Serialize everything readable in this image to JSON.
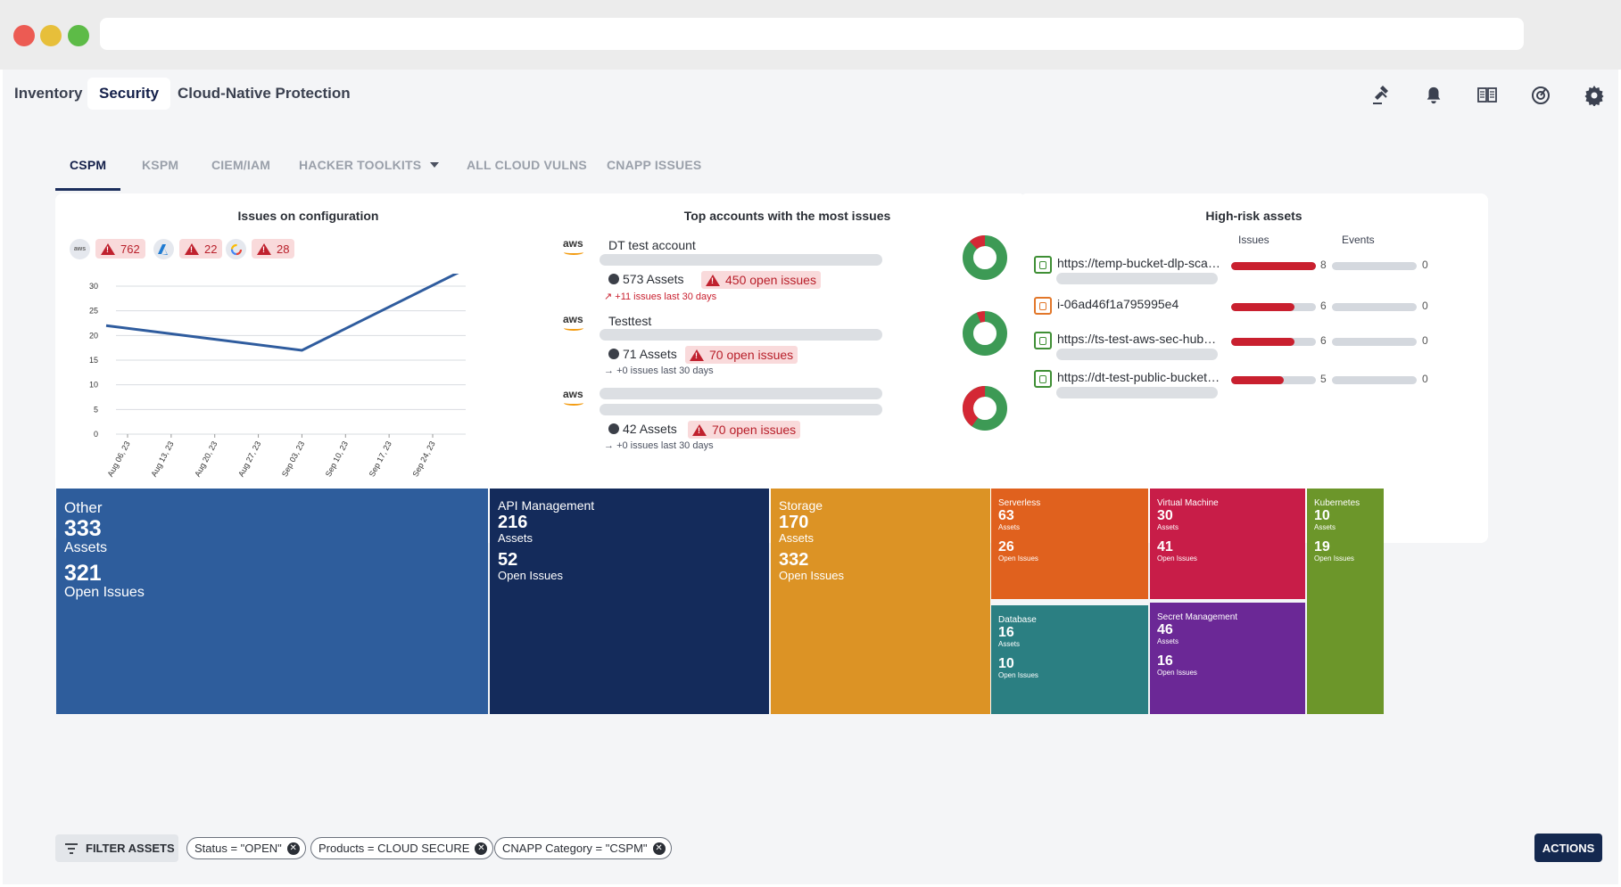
{
  "nav": {
    "tabs": [
      {
        "label": "Inventory"
      },
      {
        "label": "Security"
      },
      {
        "label": "Cloud-Native Protection"
      }
    ],
    "icons": [
      "gavel-icon",
      "bell-icon",
      "book-icon",
      "radar-icon",
      "gear-icon"
    ]
  },
  "subnav": {
    "tabs": [
      {
        "label": "CSPM"
      },
      {
        "label": "KSPM"
      },
      {
        "label": "CIEM/IAM"
      },
      {
        "label": "HACKER TOOLKITS"
      },
      {
        "label": "ALL CLOUD VULNS"
      },
      {
        "label": "CNAPP ISSUES"
      }
    ]
  },
  "issues_card": {
    "title": "Issues on configuration",
    "providers": [
      {
        "logo": "aws",
        "count": "762"
      },
      {
        "logo": "azure",
        "count": "22"
      },
      {
        "logo": "gcp",
        "count": "28"
      }
    ]
  },
  "chart_data": {
    "type": "line",
    "title": "",
    "x": [
      "Aug 06, 23",
      "Aug 13, 23",
      "Aug 20, 23",
      "Aug 27, 23",
      "Sep 03, 23",
      "Sep 10, 23",
      "Sep 17, 23",
      "Sep 24, 23"
    ],
    "yticks": [
      "0",
      "5",
      "10",
      "15",
      "20",
      "25",
      "30"
    ],
    "ylim": [
      0,
      30
    ],
    "series": [
      {
        "x": [
          "Aug 06, 23",
          "Sep 03, 23",
          "Sep 24, 23"
        ],
        "values": [
          22,
          17,
          33.5
        ]
      }
    ],
    "grid": true,
    "line_color": "#2f5c9e"
  },
  "accounts_card": {
    "title": "Top accounts with the most issues",
    "accounts": [
      {
        "name": "DT test account",
        "assets": "573 Assets",
        "issues": "450 open issues",
        "trend": "+11 issues last 30 days",
        "trend_dir": "up",
        "red_fraction": 0.12
      },
      {
        "name": "Testtest",
        "assets": "71 Assets",
        "issues": "70 open issues",
        "trend": "+0 issues last 30 days",
        "trend_dir": "flat",
        "red_fraction": 0.06
      },
      {
        "name": "",
        "assets": "42 Assets",
        "issues": "70 open issues",
        "trend": "+0 issues last 30 days",
        "trend_dir": "flat",
        "red_fraction": 0.4
      }
    ]
  },
  "highrisk_card": {
    "title": "High-risk assets",
    "col_issues": "Issues",
    "col_events": "Events",
    "assets": [
      {
        "name": "https://temp-bucket-dlp-sca…",
        "issues": 8,
        "events": 0,
        "icon": "bucket-icon",
        "color": "#3f8f35",
        "issue_fraction": 1.0
      },
      {
        "name": "i-06ad46f1a795995e4",
        "issues": 6,
        "events": 0,
        "icon": "instance-icon",
        "color": "#e2772a",
        "issue_fraction": 0.75
      },
      {
        "name": "https://ts-test-aws-sec-hub…",
        "issues": 6,
        "events": 0,
        "icon": "bucket-icon",
        "color": "#3f8f35",
        "issue_fraction": 0.75
      },
      {
        "name": "https://dt-test-public-bucket…",
        "issues": 5,
        "events": 0,
        "icon": "bucket-icon",
        "color": "#3f8f35",
        "issue_fraction": 0.62
      }
    ]
  },
  "treemap": [
    {
      "name": "Other",
      "assets": "333",
      "assets_label": "Assets",
      "issues": "321",
      "issues_label": "Open Issues",
      "color": "#2e5d9c"
    },
    {
      "name": "API Management",
      "assets": "216",
      "assets_label": "Assets",
      "issues": "52",
      "issues_label": "Open Issues",
      "color": "#142b5b"
    },
    {
      "name": "Storage",
      "assets": "170",
      "assets_label": "Assets",
      "issues": "332",
      "issues_label": "Open Issues",
      "color": "#dc9325"
    },
    {
      "name": "Serverless",
      "assets": "63",
      "assets_label": "Assets",
      "issues": "26",
      "issues_label": "Open Issues",
      "color": "#e0611e"
    },
    {
      "name": "Virtual Machine",
      "assets": "30",
      "assets_label": "Assets",
      "issues": "41",
      "issues_label": "Open Issues",
      "color": "#c81d48"
    },
    {
      "name": "Kubernetes",
      "assets": "10",
      "assets_label": "Assets",
      "issues": "19",
      "issues_label": "Open Issues",
      "color": "#6c962a"
    },
    {
      "name": "Database",
      "assets": "16",
      "assets_label": "Assets",
      "issues": "10",
      "issues_label": "Open Issues",
      "color": "#2b7f82"
    },
    {
      "name": "Secret Management",
      "assets": "46",
      "assets_label": "Assets",
      "issues": "16",
      "issues_label": "Open Issues",
      "color": "#6b2896"
    }
  ],
  "filters": {
    "button_label": "FILTER ASSETS",
    "pills": [
      {
        "label": "Status = \"OPEN\""
      },
      {
        "label": "Products = CLOUD SECURE"
      },
      {
        "label": "CNAPP Category = \"CSPM\""
      }
    ],
    "actions_label": "ACTIONS"
  }
}
